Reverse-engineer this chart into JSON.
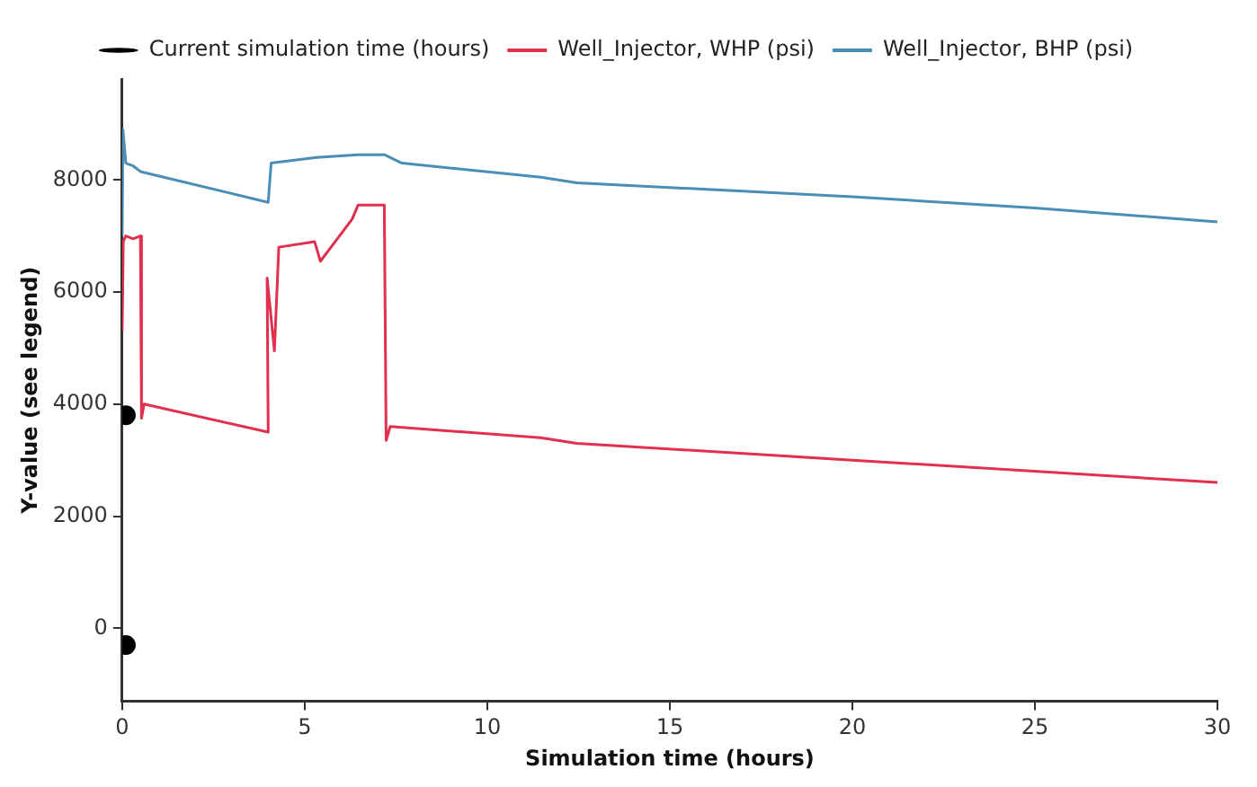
{
  "chart_data": {
    "type": "line",
    "xlabel": "Simulation time (hours)",
    "ylabel": "Y-value (see legend)",
    "xlim": [
      0,
      30
    ],
    "xticks": [
      0,
      5,
      10,
      15,
      20,
      25,
      30
    ],
    "ylim": [
      -1300,
      9800
    ],
    "yticks": [
      0,
      2000,
      4000,
      6000,
      8000
    ],
    "grid": false,
    "legend": "top",
    "marker": "none",
    "line_style": "solid",
    "series": [
      {
        "name": "Current simulation time (hours)",
        "type": "scatter",
        "marker": "circle",
        "color": "#000000",
        "x": [
          0.1,
          0.1
        ],
        "values": [
          3800,
          -300
        ]
      },
      {
        "name": "Well_Injector, WHP (psi)",
        "color": "#e0304e",
        "x": [
          0,
          0.03,
          0.1,
          0.3,
          0.5,
          0.53,
          0.6,
          4,
          3.97,
          4.17,
          4.29,
          5.27,
          5.43,
          6.3,
          6.46,
          7.18,
          7.23,
          7.34,
          11.47,
          12.45,
          20,
          30
        ],
        "values": [
          5300,
          6900,
          7000,
          6950,
          7000,
          3750,
          4000,
          3500,
          6250,
          4950,
          6800,
          6900,
          6550,
          7300,
          7550,
          7550,
          3350,
          3600,
          3400,
          3300,
          3000,
          2600
        ]
      },
      {
        "name": "Well_Injector, BHP (psi)",
        "color": "#4a8db5",
        "x": [
          0,
          0.02,
          0.1,
          0.3,
          0.5,
          4,
          4.08,
          5.32,
          6.46,
          7.18,
          7.66,
          11.47,
          12.45,
          20,
          25,
          30
        ],
        "values": [
          7000,
          8900,
          8300,
          8250,
          8150,
          7600,
          8300,
          8400,
          8450,
          8450,
          8300,
          8050,
          7950,
          7700,
          7500,
          7250
        ]
      }
    ]
  }
}
